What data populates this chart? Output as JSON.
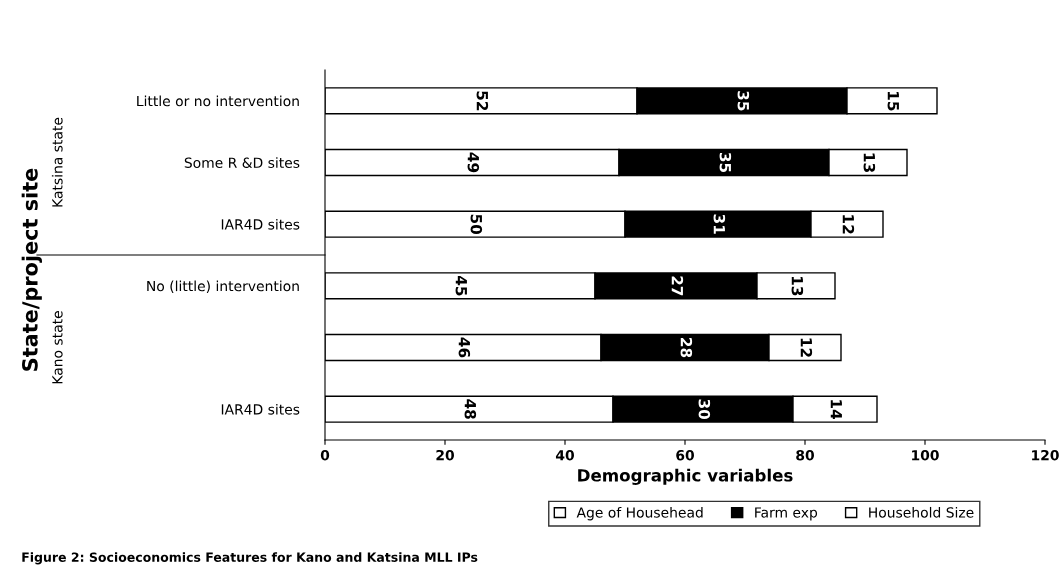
{
  "chart_data": {
    "type": "bar",
    "orientation": "horizontal",
    "stacked": true,
    "categories": [
      "Little or no intervention",
      "Some R &D sites",
      "IAR4D sites",
      "No (little) intervention",
      null,
      "IAR4D sites"
    ],
    "series": [
      {
        "name": "Age of Househead",
        "color": "#ffffff",
        "values": [
          52,
          49,
          50,
          45,
          46,
          48
        ]
      },
      {
        "name": "Farm exp",
        "color": "#000000",
        "values": [
          35,
          35,
          31,
          27,
          28,
          30
        ]
      },
      {
        "name": "Household Size",
        "color": "#ffffff",
        "values": [
          15,
          13,
          12,
          13,
          12,
          14
        ]
      }
    ],
    "xlabel": "Demographic variables",
    "ylabel": "State/project site",
    "xlim": [
      0,
      120
    ],
    "xticks": [
      0,
      20,
      40,
      60,
      80,
      100,
      120
    ],
    "data_labels": true,
    "grid": false,
    "legend": "bottom",
    "annotations": [
      "Katsina state",
      "Kano state",
      "Figure 2: Socioeconomics Features for Kano and Katsina MLL IPs"
    ]
  }
}
